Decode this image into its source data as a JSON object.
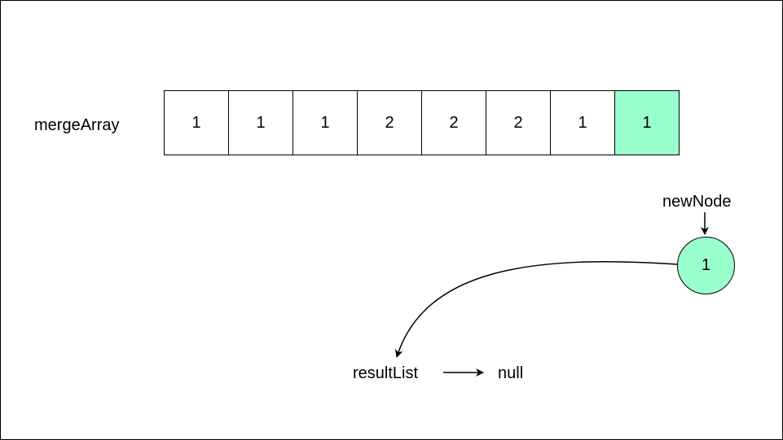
{
  "array": {
    "label": "mergeArray",
    "cells": [
      "1",
      "1",
      "1",
      "2",
      "2",
      "2",
      "1",
      "1"
    ],
    "highlight_index": 7
  },
  "new_node": {
    "label": "newNode",
    "value": "1"
  },
  "result": {
    "label": "resultList",
    "null_label": "null"
  },
  "colors": {
    "highlight": "#99FFCC",
    "stroke": "#000000"
  }
}
